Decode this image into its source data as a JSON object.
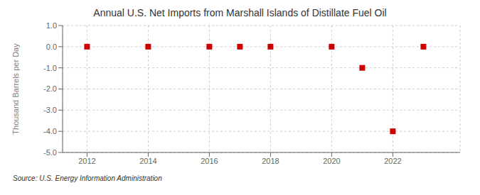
{
  "chart_data": {
    "type": "scatter",
    "title": "Annual U.S. Net Imports from Marshall Islands of Distillate Fuel Oil",
    "y_label": "Thousand Barrels per Day",
    "annotations": [
      "Source: U.S. Energy Information Administration"
    ],
    "x": [
      2012,
      2014,
      2016,
      2017,
      2018,
      2020,
      2021,
      2022,
      2023
    ],
    "values": [
      0,
      0,
      0,
      0,
      0,
      0,
      -1,
      -4,
      0
    ],
    "color": "#cc0000",
    "marker": "square",
    "xlim": [
      2011.2,
      2024.2
    ],
    "xticks": [
      2012,
      2014,
      2016,
      2018,
      2020,
      2022
    ],
    "ylim": [
      -5.0,
      1.0
    ],
    "yticks": [
      {
        "value": 1.0,
        "label": "1.0"
      },
      {
        "value": 0.0,
        "label": "0.0"
      },
      {
        "value": -1.0,
        "label": "-1.0"
      },
      {
        "value": -2.0,
        "label": "-2.0"
      },
      {
        "value": -3.0,
        "label": "-3.0"
      },
      {
        "value": -4.0,
        "label": "-4.0"
      },
      {
        "value": -5.0,
        "label": "-5.0"
      }
    ],
    "grid": true
  }
}
